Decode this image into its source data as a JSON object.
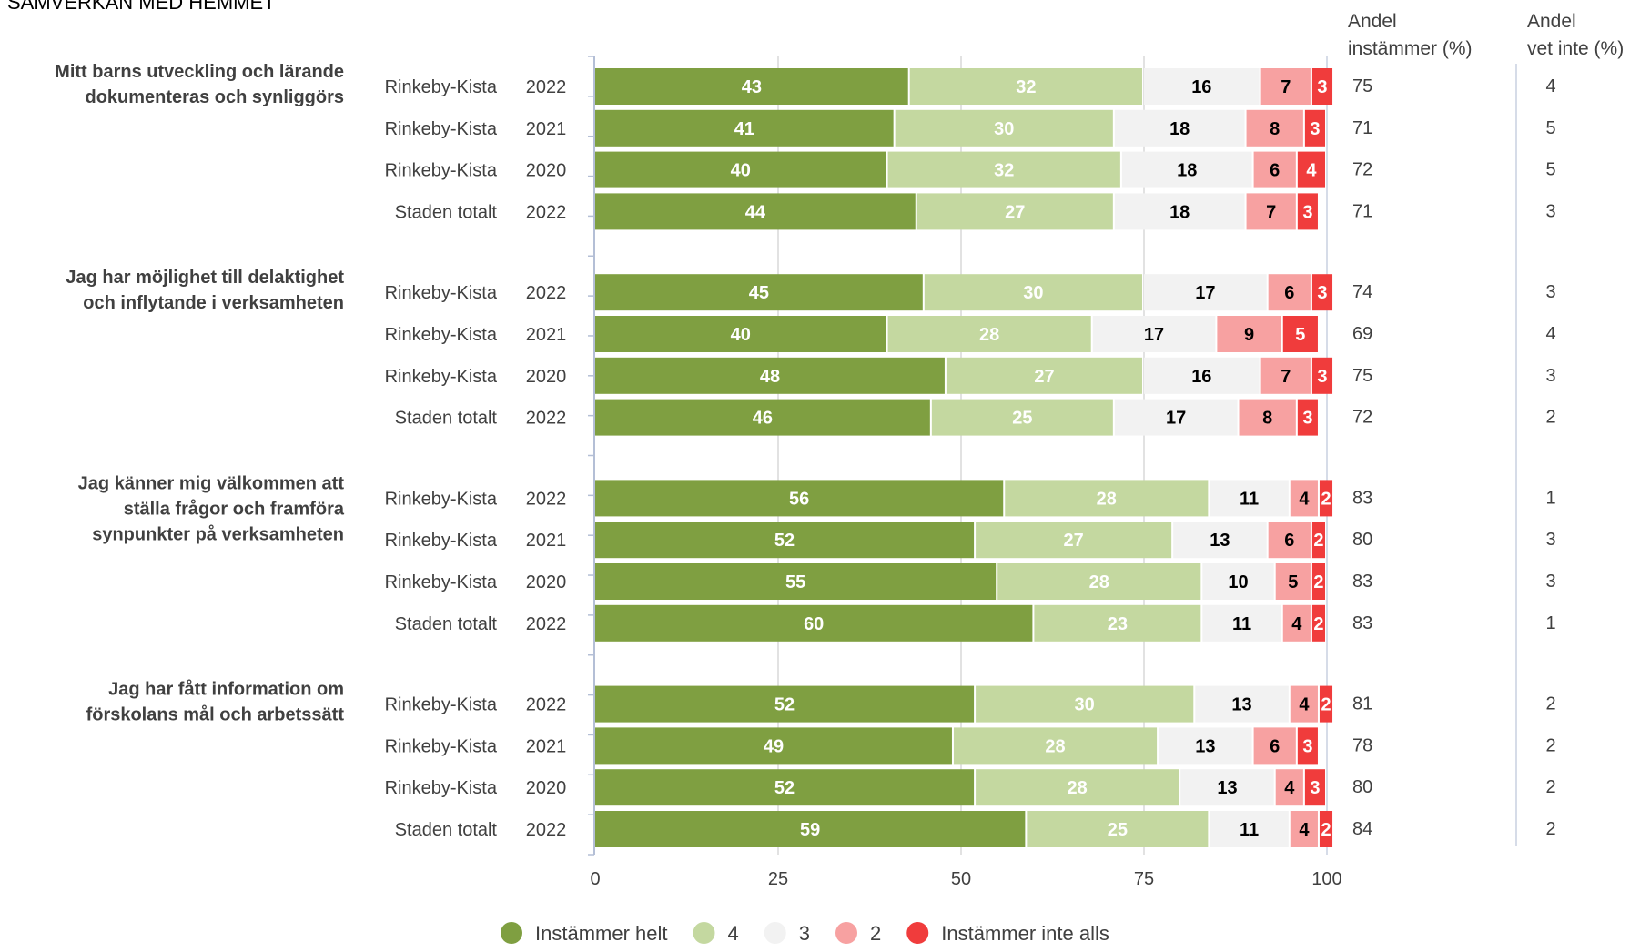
{
  "chart_data": {
    "type": "bar",
    "stacked": true,
    "orientation": "horizontal",
    "title": "SAMVERKAN MED HEMMET",
    "xlim": [
      0,
      100
    ],
    "xticks": [
      0,
      25,
      50,
      75,
      100
    ],
    "grid": true,
    "legend_position": "bottom",
    "column_headers": {
      "share_agree": [
        "Andel",
        "instämmer (%)"
      ],
      "share_dont_know": [
        "Andel",
        "vet inte (%)"
      ]
    },
    "series": [
      {
        "name": "Instämmer helt",
        "color": "#7f9f41"
      },
      {
        "name": "4",
        "color": "#c4d8a0"
      },
      {
        "name": "3",
        "color": "#f2f2f2"
      },
      {
        "name": "2",
        "color": "#f7a1a1"
      },
      {
        "name": "Instämmer inte alls",
        "color": "#f03c3c"
      }
    ],
    "groups": [
      {
        "question": [
          "Mitt barns utveckling och lärande",
          "dokumenteras och synliggörs"
        ],
        "rows": [
          {
            "unit": "Rinkeby-Kista",
            "year": "2022",
            "values": [
              43,
              32,
              16,
              7,
              3
            ],
            "share_agree": "75",
            "share_dont_know": "4"
          },
          {
            "unit": "Rinkeby-Kista",
            "year": "2021",
            "values": [
              41,
              30,
              18,
              8,
              3
            ],
            "share_agree": "71",
            "share_dont_know": "5"
          },
          {
            "unit": "Rinkeby-Kista",
            "year": "2020",
            "values": [
              40,
              32,
              18,
              6,
              4
            ],
            "share_agree": "72",
            "share_dont_know": "5"
          },
          {
            "unit": "Staden totalt",
            "year": "2022",
            "values": [
              44,
              27,
              18,
              7,
              3
            ],
            "share_agree": "71",
            "share_dont_know": "3"
          }
        ]
      },
      {
        "question": [
          "Jag har möjlighet till delaktighet",
          "och inflytande i verksamheten"
        ],
        "rows": [
          {
            "unit": "Rinkeby-Kista",
            "year": "2022",
            "values": [
              45,
              30,
              17,
              6,
              3
            ],
            "share_agree": "74",
            "share_dont_know": "3"
          },
          {
            "unit": "Rinkeby-Kista",
            "year": "2021",
            "values": [
              40,
              28,
              17,
              9,
              5
            ],
            "share_agree": "69",
            "share_dont_know": "4"
          },
          {
            "unit": "Rinkeby-Kista",
            "year": "2020",
            "values": [
              48,
              27,
              16,
              7,
              3
            ],
            "share_agree": "75",
            "share_dont_know": "3"
          },
          {
            "unit": "Staden totalt",
            "year": "2022",
            "values": [
              46,
              25,
              17,
              8,
              3
            ],
            "share_agree": "72",
            "share_dont_know": "2"
          }
        ]
      },
      {
        "question": [
          "Jag känner mig välkommen att",
          "ställa frågor och framföra",
          "synpunkter på verksamheten"
        ],
        "rows": [
          {
            "unit": "Rinkeby-Kista",
            "year": "2022",
            "values": [
              56,
              28,
              11,
              4,
              2
            ],
            "share_agree": "83",
            "share_dont_know": "1"
          },
          {
            "unit": "Rinkeby-Kista",
            "year": "2021",
            "values": [
              52,
              27,
              13,
              6,
              2
            ],
            "share_agree": "80",
            "share_dont_know": "3"
          },
          {
            "unit": "Rinkeby-Kista",
            "year": "2020",
            "values": [
              55,
              28,
              10,
              5,
              2
            ],
            "share_agree": "83",
            "share_dont_know": "3"
          },
          {
            "unit": "Staden totalt",
            "year": "2022",
            "values": [
              60,
              23,
              11,
              4,
              2
            ],
            "share_agree": "83",
            "share_dont_know": "1"
          }
        ]
      },
      {
        "question": [
          "Jag har fått information om",
          "förskolans mål och arbetssätt"
        ],
        "rows": [
          {
            "unit": "Rinkeby-Kista",
            "year": "2022",
            "values": [
              52,
              30,
              13,
              4,
              2
            ],
            "share_agree": "81",
            "share_dont_know": "2"
          },
          {
            "unit": "Rinkeby-Kista",
            "year": "2021",
            "values": [
              49,
              28,
              13,
              6,
              3
            ],
            "share_agree": "78",
            "share_dont_know": "2"
          },
          {
            "unit": "Rinkeby-Kista",
            "year": "2020",
            "values": [
              52,
              28,
              13,
              4,
              3
            ],
            "share_agree": "80",
            "share_dont_know": "2"
          },
          {
            "unit": "Staden totalt",
            "year": "2022",
            "values": [
              59,
              25,
              11,
              4,
              2
            ],
            "share_agree": "84",
            "share_dont_know": "2"
          }
        ]
      }
    ],
    "segment_label_colors": [
      "#ffffff",
      "#ffffff",
      "#000000",
      "#000000",
      "#ffffff"
    ]
  }
}
